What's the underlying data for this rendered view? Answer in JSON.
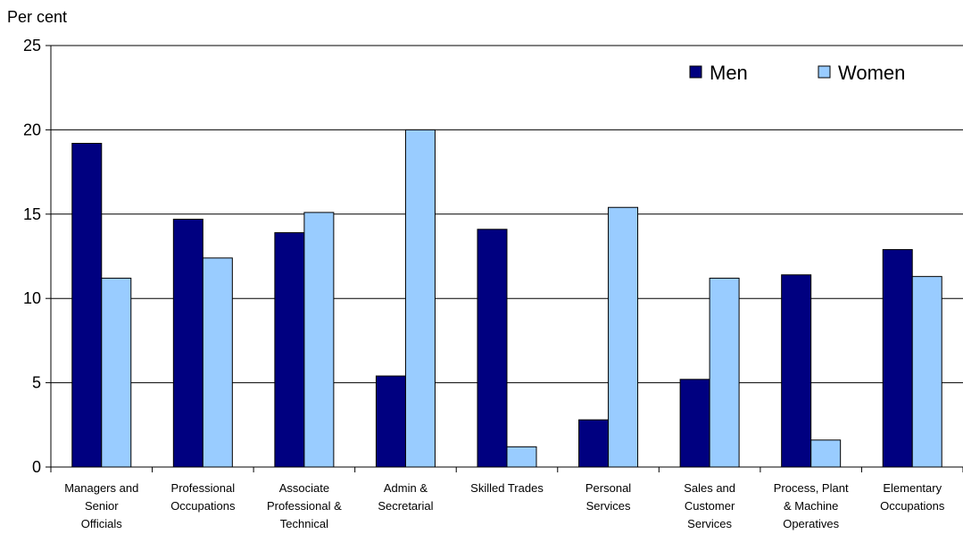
{
  "chart_data": {
    "type": "bar",
    "ylabel": "Per cent",
    "ylim": [
      0,
      25
    ],
    "yticks": [
      0,
      5,
      10,
      15,
      20,
      25
    ],
    "grid": true,
    "legend_position": "top-right",
    "categories": [
      [
        "Managers and",
        "Senior",
        "Officials"
      ],
      [
        "Professional",
        "Occupations"
      ],
      [
        "Associate",
        "Professional &",
        "Technical"
      ],
      [
        "Admin &",
        "Secretarial"
      ],
      [
        "Skilled Trades"
      ],
      [
        "Personal",
        "Services"
      ],
      [
        "Sales and",
        "Customer",
        "Services"
      ],
      [
        "Process, Plant",
        "& Machine",
        "Operatives"
      ],
      [
        "Elementary",
        "Occupations"
      ]
    ],
    "series": [
      {
        "name": "Men",
        "color": "#000080",
        "values": [
          19.2,
          14.7,
          13.9,
          5.4,
          14.1,
          2.8,
          5.2,
          11.4,
          12.9
        ]
      },
      {
        "name": "Women",
        "color": "#99CCFF",
        "values": [
          11.2,
          12.4,
          15.1,
          20.0,
          1.2,
          15.4,
          11.2,
          1.6,
          11.3
        ]
      }
    ]
  }
}
